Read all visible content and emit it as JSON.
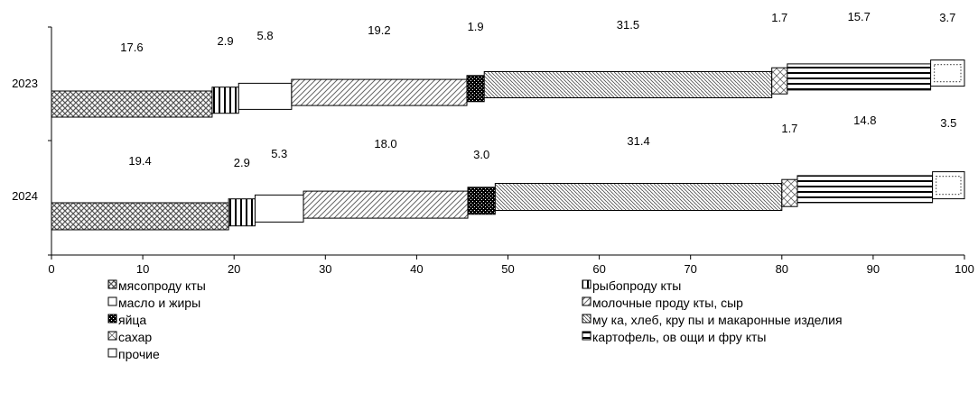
{
  "chart_data": {
    "type": "bar",
    "orientation": "horizontal",
    "stacked": true,
    "categories": [
      "2023",
      "2024"
    ],
    "xlim": [
      0,
      100
    ],
    "xticks": [
      "0",
      "10",
      "20",
      "30",
      "40",
      "50",
      "60",
      "70",
      "80",
      "90",
      "100"
    ],
    "series": [
      {
        "name": "мясопроду кты",
        "values": [
          17.6,
          19.4
        ],
        "pattern": "crosshatch"
      },
      {
        "name": "рыбопроду кты",
        "values": [
          2.9,
          2.9
        ],
        "pattern": "vertical"
      },
      {
        "name": "масло и жиры",
        "values": [
          5.8,
          5.3
        ],
        "pattern": "none"
      },
      {
        "name": "молочные проду кты, сыр",
        "values": [
          19.2,
          18.0
        ],
        "pattern": "diag-light"
      },
      {
        "name": "яйца",
        "values": [
          1.9,
          3.0
        ],
        "pattern": "dense-dots"
      },
      {
        "name": "му ка, хлеб, кру пы и макаронные изделия",
        "values": [
          31.5,
          31.4
        ],
        "pattern": "diag-dense"
      },
      {
        "name": "сахар",
        "values": [
          1.7,
          1.7
        ],
        "pattern": "cross-x"
      },
      {
        "name": "картофель,  ов ощи и фру кты",
        "values": [
          15.7,
          14.8
        ],
        "pattern": "horizontal"
      },
      {
        "name": "прочие",
        "values": [
          3.7,
          3.5
        ],
        "pattern": "dotted-box"
      }
    ],
    "value_labels": {
      "2023": [
        "17.6",
        "2.9",
        "5.8",
        "19.2",
        "1.9",
        "31.5",
        "1.7",
        "15.7",
        "3.7"
      ],
      "2024": [
        "19.4",
        "2.9",
        "5.3",
        "18.0",
        "3.0",
        "31.4",
        "1.7",
        "14.8",
        "3.5"
      ]
    },
    "legend_order_left": [
      0,
      2,
      4,
      6,
      8
    ],
    "legend_order_right": [
      1,
      3,
      5,
      7
    ],
    "legend_position": "bottom"
  }
}
